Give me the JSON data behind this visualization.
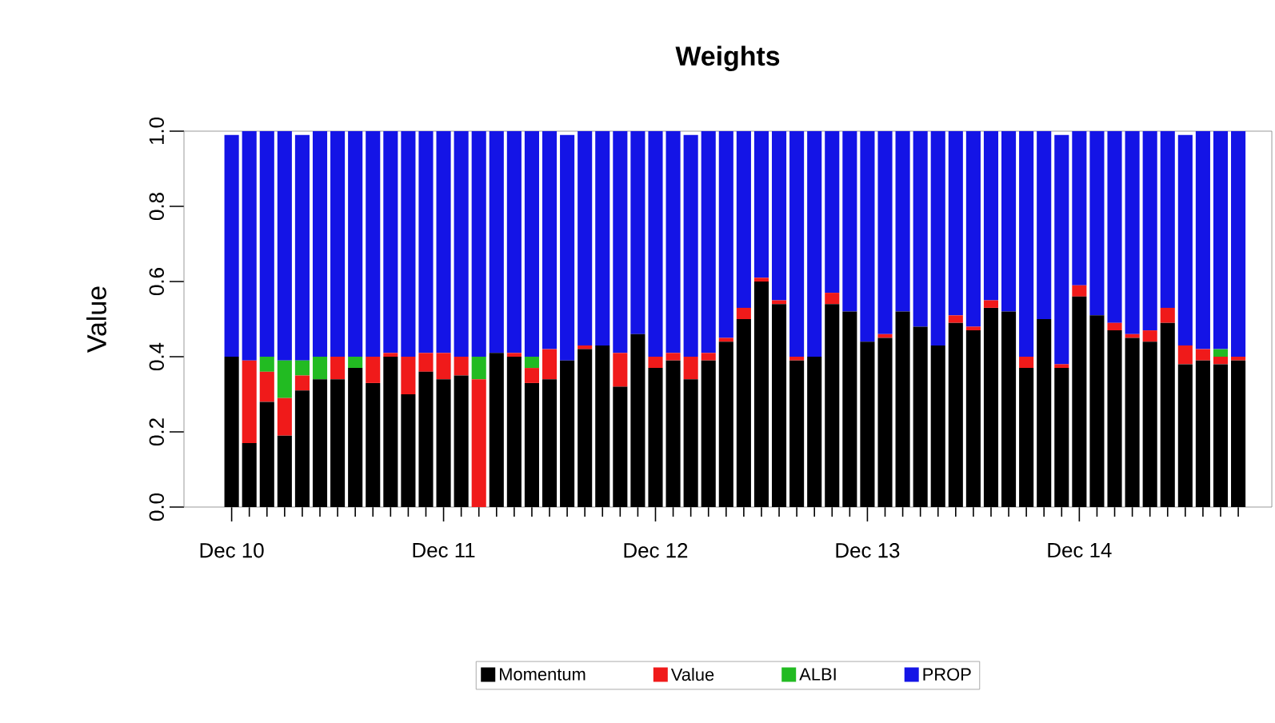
{
  "chart_data": {
    "type": "bar",
    "title": "Weights",
    "ylabel": "Value",
    "stacked": true,
    "legend": "bottom",
    "categories": [
      "Dec 10",
      null,
      null,
      null,
      null,
      null,
      null,
      null,
      null,
      null,
      null,
      null,
      "Dec 11",
      null,
      null,
      null,
      null,
      null,
      null,
      null,
      null,
      null,
      null,
      null,
      "Dec 12",
      null,
      null,
      null,
      null,
      null,
      null,
      null,
      null,
      null,
      null,
      null,
      "Dec 13",
      null,
      null,
      null,
      null,
      null,
      null,
      null,
      null,
      null,
      null,
      null,
      "Dec 14",
      null,
      null,
      null,
      null,
      null,
      null,
      null,
      null,
      null
    ],
    "ylim": [
      0,
      1.0
    ],
    "yticks": [
      {
        "value": 0,
        "label": "0.0"
      },
      {
        "value": 0.2,
        "label": "0.2"
      },
      {
        "value": 0.4,
        "label": "0.4"
      },
      {
        "value": 0.6,
        "label": "0.6"
      },
      {
        "value": 0.8,
        "label": "0.8"
      },
      {
        "value": 1.0,
        "label": "1.0"
      }
    ],
    "series": [
      {
        "name": "Momentum",
        "color": "#000000",
        "values": [
          0.4,
          0.17,
          0.28,
          0.19,
          0.31,
          0.34,
          0.34,
          0.37,
          0.33,
          0.4,
          0.3,
          0.36,
          0.34,
          0.35,
          0,
          0.41,
          0.4,
          0.33,
          0.34,
          0.39,
          0.42,
          0.43,
          0.32,
          0.46,
          0.37,
          0.39,
          0.34,
          0.39,
          0.44,
          0.5,
          0.6,
          0.54,
          0.39,
          0.4,
          0.54,
          0.52,
          0.44,
          0.45,
          0.52,
          0.48,
          0.43,
          0.49,
          0.47,
          0.53,
          0.52,
          0.37,
          0.5,
          0.37,
          0.56,
          0.51,
          0.47,
          0.45,
          0.44,
          0.49,
          0.38,
          0.39,
          0.38,
          0.39
        ]
      },
      {
        "name": "Value",
        "color": "#f01a1a",
        "values": [
          0,
          0.22,
          0.08,
          0.1,
          0.04,
          0,
          0.06,
          0,
          0.07,
          0.01,
          0.1,
          0.05,
          0.07,
          0.05,
          0.34,
          0,
          0.01,
          0.04,
          0.08,
          0,
          0.01,
          0,
          0.09,
          0,
          0.03,
          0.02,
          0.06,
          0.02,
          0.01,
          0.03,
          0.01,
          0.01,
          0.01,
          0,
          0.03,
          0,
          0,
          0.01,
          0,
          0,
          0,
          0.02,
          0.01,
          0.02,
          0,
          0.03,
          0,
          0.01,
          0.03,
          0,
          0.02,
          0.01,
          0.03,
          0.04,
          0.05,
          0.03,
          0.02,
          0.01
        ]
      },
      {
        "name": "ALBI",
        "color": "#22bb22",
        "values": [
          0,
          0,
          0.04,
          0.1,
          0.04,
          0.06,
          0,
          0.03,
          0,
          0,
          0,
          0,
          0,
          0,
          0.06,
          0,
          0,
          0.03,
          0,
          0,
          0,
          0,
          0,
          0,
          0,
          0,
          0,
          0,
          0,
          0,
          0,
          0,
          0,
          0,
          0,
          0,
          0,
          0,
          0,
          0,
          0,
          0,
          0,
          0,
          0,
          0,
          0,
          0,
          0,
          0,
          0,
          0,
          0,
          0,
          0,
          0,
          0.02,
          0
        ]
      },
      {
        "name": "PROP",
        "color": "#1414e6",
        "values": [
          0.59,
          0.61,
          0.6,
          0.61,
          0.6,
          0.6,
          0.6,
          0.6,
          0.6,
          0.59,
          0.6,
          0.59,
          0.59,
          0.6,
          0.6,
          0.59,
          0.59,
          0.6,
          0.58,
          0.6,
          0.57,
          0.57,
          0.59,
          0.54,
          0.6,
          0.59,
          0.59,
          0.59,
          0.55,
          0.47,
          0.39,
          0.45,
          0.6,
          0.6,
          0.43,
          0.48,
          0.56,
          0.54,
          0.48,
          0.52,
          0.57,
          0.49,
          0.52,
          0.45,
          0.48,
          0.6,
          0.5,
          0.61,
          0.41,
          0.49,
          0.51,
          0.54,
          0.53,
          0.47,
          0.56,
          0.58,
          0.58,
          0.6
        ]
      }
    ]
  }
}
